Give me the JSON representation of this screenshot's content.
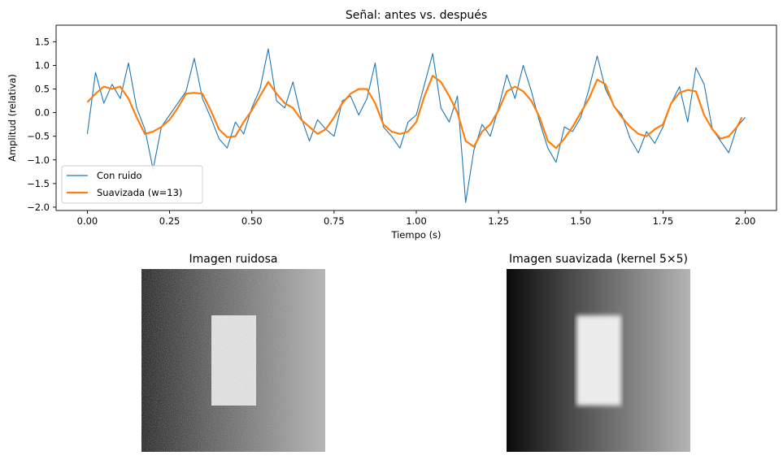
{
  "chart_data": [
    {
      "type": "line",
      "title": "Señal: antes vs. después",
      "xlabel": "Tiempo (s)",
      "ylabel": "Amplitud (relativa)",
      "xlim": [
        -0.095,
        2.095
      ],
      "ylim": [
        -2.07,
        1.85
      ],
      "xticks": [
        0.0,
        0.25,
        0.5,
        0.75,
        1.0,
        1.25,
        1.5,
        1.75,
        2.0
      ],
      "xtick_labels": [
        "0.00",
        "0.25",
        "0.50",
        "0.75",
        "1.00",
        "1.25",
        "1.50",
        "1.75",
        "2.00"
      ],
      "yticks": [
        -2.0,
        -1.5,
        -1.0,
        -0.5,
        0.0,
        0.5,
        1.0,
        1.5
      ],
      "ytick_labels": [
        "−2.0",
        "−1.5",
        "−1.0",
        "−0.5",
        "0.0",
        "0.5",
        "1.0",
        "1.5"
      ],
      "grid": false,
      "legend_position": "lower-left",
      "series": [
        {
          "name": "Con ruido",
          "color": "#1f77b4",
          "x": [
            0.0,
            0.025,
            0.05,
            0.075,
            0.1,
            0.125,
            0.15,
            0.175,
            0.2,
            0.225,
            0.25,
            0.275,
            0.3,
            0.325,
            0.35,
            0.375,
            0.4,
            0.425,
            0.45,
            0.475,
            0.5,
            0.525,
            0.55,
            0.575,
            0.6,
            0.625,
            0.65,
            0.675,
            0.7,
            0.725,
            0.75,
            0.775,
            0.8,
            0.825,
            0.85,
            0.875,
            0.9,
            0.925,
            0.95,
            0.975,
            1.0,
            1.025,
            1.05,
            1.075,
            1.1,
            1.125,
            1.15,
            1.175,
            1.2,
            1.225,
            1.25,
            1.275,
            1.3,
            1.325,
            1.35,
            1.375,
            1.4,
            1.425,
            1.45,
            1.475,
            1.5,
            1.525,
            1.55,
            1.575,
            1.6,
            1.625,
            1.65,
            1.675,
            1.7,
            1.725,
            1.75,
            1.775,
            1.8,
            1.825,
            1.85,
            1.875,
            1.9,
            1.925,
            1.95,
            1.975,
            2.0
          ],
          "y": [
            -0.45,
            0.85,
            0.2,
            0.6,
            0.3,
            1.05,
            0.1,
            -0.35,
            -1.2,
            -0.3,
            -0.05,
            0.2,
            0.45,
            1.15,
            0.3,
            -0.1,
            -0.55,
            -0.75,
            -0.2,
            -0.45,
            0.1,
            0.5,
            1.35,
            0.25,
            0.1,
            0.65,
            -0.1,
            -0.6,
            -0.15,
            -0.35,
            -0.5,
            0.25,
            0.35,
            -0.05,
            0.3,
            1.05,
            -0.3,
            -0.5,
            -0.75,
            -0.2,
            -0.05,
            0.6,
            1.25,
            0.1,
            -0.2,
            0.35,
            -1.9,
            -0.8,
            -0.25,
            -0.5,
            0.1,
            0.8,
            0.3,
            1.0,
            0.45,
            -0.2,
            -0.75,
            -1.05,
            -0.3,
            -0.4,
            -0.1,
            0.5,
            1.2,
            0.5,
            0.15,
            -0.05,
            -0.55,
            -0.85,
            -0.4,
            -0.65,
            -0.3,
            0.2,
            0.55,
            -0.2,
            0.95,
            0.6,
            -0.35,
            -0.6,
            -0.85,
            -0.3,
            -0.1
          ]
        },
        {
          "name": "Suavizada (w=13)",
          "color": "#ff7f0e",
          "x": [
            0.0,
            0.025,
            0.05,
            0.075,
            0.1,
            0.125,
            0.15,
            0.175,
            0.2,
            0.225,
            0.25,
            0.275,
            0.3,
            0.325,
            0.35,
            0.375,
            0.4,
            0.425,
            0.45,
            0.475,
            0.5,
            0.525,
            0.55,
            0.575,
            0.6,
            0.625,
            0.65,
            0.675,
            0.7,
            0.725,
            0.75,
            0.775,
            0.8,
            0.825,
            0.85,
            0.875,
            0.9,
            0.925,
            0.95,
            0.975,
            1.0,
            1.025,
            1.05,
            1.075,
            1.1,
            1.125,
            1.15,
            1.175,
            1.2,
            1.225,
            1.25,
            1.275,
            1.3,
            1.325,
            1.35,
            1.375,
            1.4,
            1.425,
            1.45,
            1.475,
            1.5,
            1.525,
            1.55,
            1.575,
            1.6,
            1.625,
            1.65,
            1.675,
            1.7,
            1.725,
            1.75,
            1.775,
            1.8,
            1.825,
            1.85,
            1.875,
            1.9,
            1.925,
            1.95,
            1.975,
            1.99
          ],
          "y": [
            0.22,
            0.4,
            0.55,
            0.5,
            0.55,
            0.3,
            -0.1,
            -0.45,
            -0.4,
            -0.3,
            -0.15,
            0.1,
            0.4,
            0.42,
            0.4,
            0.05,
            -0.35,
            -0.52,
            -0.5,
            -0.2,
            0.05,
            0.35,
            0.65,
            0.4,
            0.2,
            0.1,
            -0.15,
            -0.3,
            -0.45,
            -0.35,
            -0.1,
            0.2,
            0.4,
            0.5,
            0.5,
            0.2,
            -0.25,
            -0.4,
            -0.45,
            -0.4,
            -0.2,
            0.35,
            0.78,
            0.65,
            0.35,
            0.0,
            -0.6,
            -0.72,
            -0.4,
            -0.25,
            0.05,
            0.45,
            0.55,
            0.45,
            0.25,
            -0.1,
            -0.6,
            -0.75,
            -0.55,
            -0.3,
            0.0,
            0.3,
            0.7,
            0.6,
            0.15,
            -0.1,
            -0.3,
            -0.45,
            -0.5,
            -0.35,
            -0.25,
            0.2,
            0.42,
            0.48,
            0.45,
            -0.05,
            -0.35,
            -0.55,
            -0.5,
            -0.3,
            -0.1
          ]
        }
      ]
    },
    {
      "type": "heatmap",
      "title": "Imagen ruidosa",
      "colormap": "gray",
      "description_values": {
        "gradient_left": 0.0,
        "gradient_right": 0.7,
        "rect_value": 0.95,
        "noise": "high"
      }
    },
    {
      "type": "heatmap",
      "title": "Imagen suavizada (kernel 5×5)",
      "colormap": "gray",
      "description_values": {
        "gradient_left": 0.0,
        "gradient_right": 0.7,
        "rect_value": 0.95,
        "noise": "low"
      }
    }
  ]
}
